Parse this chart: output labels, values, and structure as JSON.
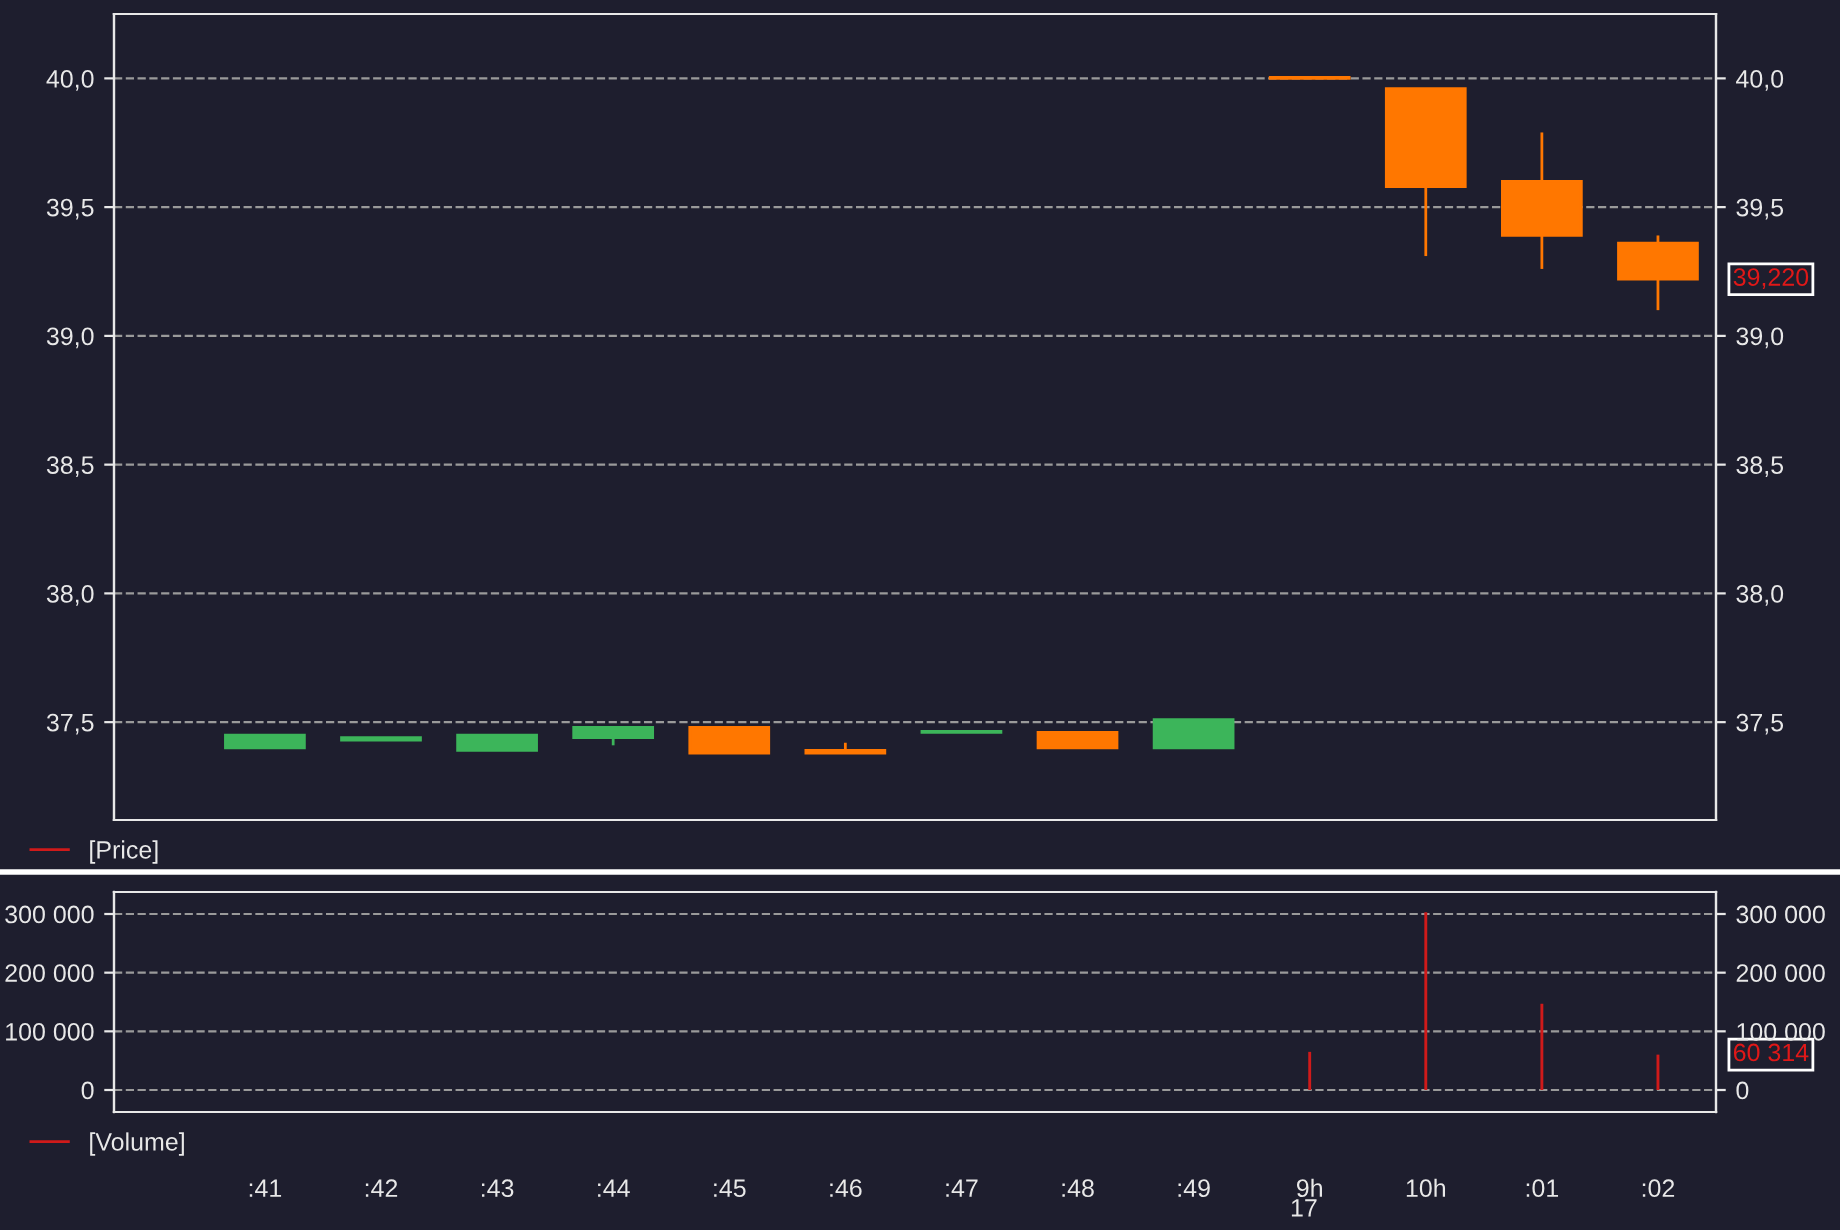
{
  "chart_data": [
    {
      "type": "candlestick",
      "categories": [
        null,
        null,
        null,
        null,
        null,
        null,
        null,
        null,
        null,
        null,
        null,
        null,
        null
      ],
      "series": [
        {
          "name": "[Price]",
          "color": "#d01a1a",
          "ohlc": [
            [
              37.4,
              37.45,
              37.4,
              37.45
            ],
            [
              37.43,
              37.44,
              37.43,
              37.44
            ],
            [
              37.39,
              37.45,
              37.39,
              37.45
            ],
            [
              37.44,
              37.48,
              37.41,
              37.48
            ],
            [
              37.48,
              37.48,
              37.38,
              37.38
            ],
            [
              37.39,
              37.42,
              37.38,
              37.38
            ],
            [
              37.46,
              37.46,
              37.46,
              37.46
            ],
            [
              37.46,
              37.46,
              37.4,
              37.4
            ],
            [
              37.4,
              37.51,
              37.4,
              37.51
            ],
            [
              40.0,
              40.0,
              40.0,
              40.0
            ],
            [
              39.96,
              39.96,
              39.31,
              39.58
            ],
            [
              39.6,
              39.79,
              39.26,
              39.39
            ],
            [
              39.36,
              39.39,
              39.1,
              39.22
            ]
          ],
          "colors": [
            "#3cb55a",
            "#3cb55a",
            "#3cb55a",
            "#3cb55a",
            "#ff7700",
            "#ff7700",
            "#3cb55a",
            "#ff7700",
            "#3cb55a",
            "#ff7700",
            "#ff7700",
            "#ff7700",
            "#ff7700"
          ]
        }
      ],
      "ylim": [
        37.12,
        40.25
      ],
      "yticks": [
        {
          "value": 37.5,
          "label": "37,5"
        },
        {
          "value": 38.0,
          "label": "38,0"
        },
        {
          "value": 38.5,
          "label": "38,5"
        },
        {
          "value": 39.0,
          "label": "39,0"
        },
        {
          "value": 39.5,
          "label": "39,5"
        },
        {
          "value": 40.0,
          "label": "40,0"
        }
      ],
      "y2lim": [
        37.12,
        40.25
      ],
      "y2ticks": [
        {
          "value": 37.5,
          "label": "37,5"
        },
        {
          "value": 38.0,
          "label": "38,0"
        },
        {
          "value": 38.5,
          "label": "38,5"
        },
        {
          "value": 39.0,
          "label": "39,0"
        },
        {
          "value": 39.5,
          "label": "39,5"
        },
        {
          "value": 40.0,
          "label": "40,0"
        }
      ],
      "annotations": [
        "39,220"
      ],
      "grid": "y",
      "legend": "bottom left",
      "tick_labels": "y"
    },
    {
      "type": "bar",
      "categories": [
        ":41",
        ":42",
        ":43",
        ":44",
        ":45",
        ":46",
        ":47",
        ":48",
        ":49",
        "9h",
        "10h",
        ":01",
        ":02"
      ],
      "series": [
        {
          "name": "[Volume]",
          "color": "#d01a1a",
          "values": [
            null,
            null,
            null,
            null,
            null,
            null,
            null,
            null,
            null,
            65000,
            303000,
            147000,
            60314
          ]
        }
      ],
      "ylim": [
        -37500,
        337500
      ],
      "yticks": [
        {
          "value": 0,
          "label": "0"
        },
        {
          "value": 100000,
          "label": "100 000"
        },
        {
          "value": 200000,
          "label": "200 000"
        },
        {
          "value": 300000,
          "label": "300 000"
        }
      ],
      "y2lim": [
        -37500,
        337500
      ],
      "y2ticks": [
        {
          "value": 0,
          "label": "0"
        },
        {
          "value": 100000,
          "label": "100 000"
        },
        {
          "value": 200000,
          "label": "200 000"
        },
        {
          "value": 300000,
          "label": "300 000"
        }
      ],
      "annotations": [
        "60 314",
        "17"
      ],
      "grid": "y",
      "legend": "bottom left"
    }
  ]
}
